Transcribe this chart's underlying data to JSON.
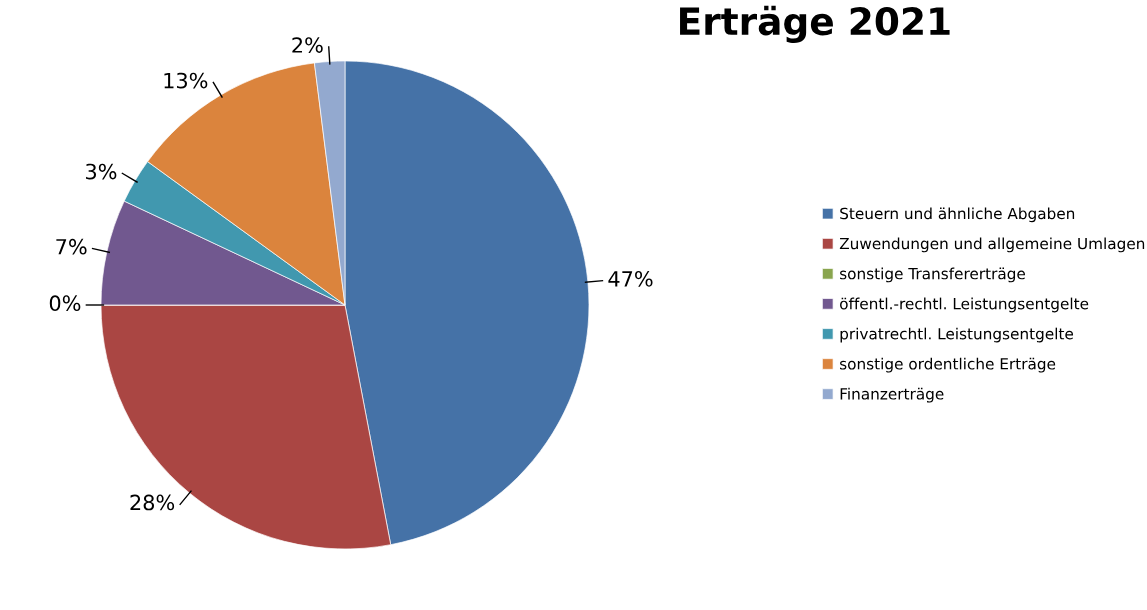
{
  "chart_data": {
    "type": "pie",
    "title": "Erträge 2021",
    "categories": [
      "Steuern und ähnliche Abgaben",
      "Zuwendungen und allgemeine Umlagen",
      "sonstige Transfererträge",
      "öffentl.-rechtl. Leistungsentgelte",
      "privatrechtl. Leistungsentgelte",
      "sonstige ordentliche Erträge",
      "Finanzerträge"
    ],
    "values": [
      47,
      28,
      0,
      7,
      3,
      13,
      2
    ],
    "value_labels": [
      "47%",
      "28%",
      "0%",
      "7%",
      "3%",
      "13%",
      "2%"
    ],
    "colors": [
      "#4572a7",
      "#aa4643",
      "#89a54e",
      "#71588f",
      "#4198af",
      "#db843d",
      "#93a9cf"
    ],
    "legend": "right"
  }
}
